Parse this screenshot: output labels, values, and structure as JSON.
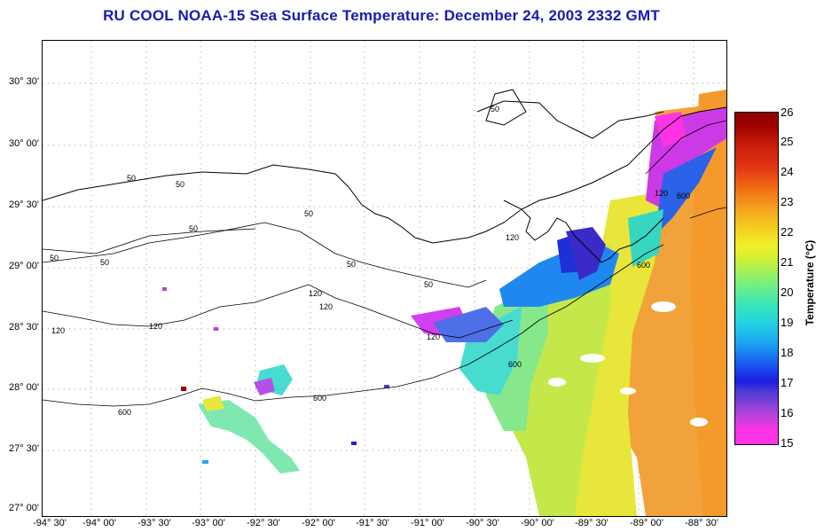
{
  "title": "RU COOL  NOAA-15  Sea Surface Temperature:  December 24, 2003 2332 GMT",
  "map": {
    "lat_labels": [
      "30° 30'",
      "30° 00'",
      "29° 30'",
      "29° 00'",
      "28° 30'",
      "28° 00'",
      "27° 30'",
      "27° 00'"
    ],
    "lon_labels": [
      "-94° 30'",
      "-94° 00'",
      "-93° 30'",
      "-93° 00'",
      "-92° 30'",
      "-92° 00'",
      "-91° 30'",
      "-91° 00'",
      "-90° 30'",
      "-90° 00'",
      "-89° 30'",
      "-89° 00'",
      "-88° 30'"
    ],
    "contour_labels": [
      "50",
      "50",
      "50",
      "50",
      "50",
      "50",
      "50",
      "50",
      "50",
      "120",
      "120",
      "120",
      "120",
      "120",
      "120",
      "120",
      "600",
      "600",
      "600",
      "600",
      "600"
    ]
  },
  "colorbar": {
    "title": "Temperature (°C)",
    "ticks": [
      "26",
      "25",
      "24",
      "23",
      "22",
      "21",
      "20",
      "19",
      "18",
      "17",
      "16",
      "15"
    ],
    "min": 15,
    "max": 26
  }
}
